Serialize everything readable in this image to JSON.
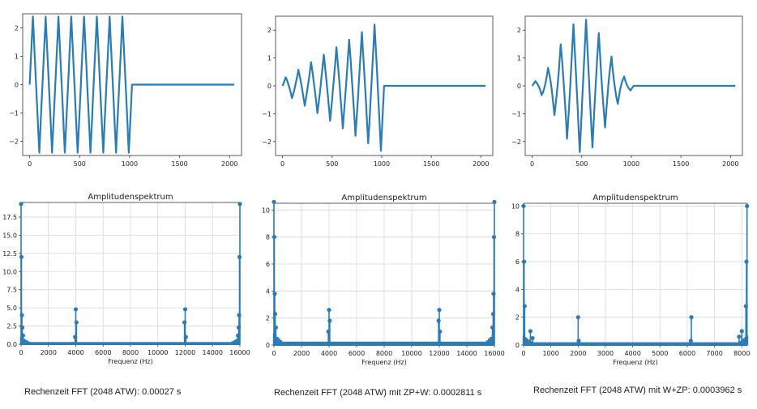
{
  "colors": {
    "series": "#2b7bb6",
    "grid": "#d9d9d9",
    "axis": "#333333"
  },
  "captions": [
    "Rechenzeit FFT (2048 ATW): 0.00027 s",
    "Rechenzeit FFT (2048 ATW) mit ZP+W: 0.0002811 s",
    "Rechenzeit FFT (2048 ATW) mit W+ZP: 0.0003962 s"
  ],
  "chart_data": [
    {
      "type": "line",
      "title": "",
      "xlabel": "",
      "ylabel": "",
      "xlim": [
        -70,
        2120
      ],
      "ylim": [
        -2.5,
        2.5
      ],
      "xticks": [
        0,
        500,
        1000,
        1500,
        2000
      ],
      "yticks": [
        2,
        1,
        0,
        -1,
        -2
      ],
      "grid": false,
      "signal": {
        "samples": 2048,
        "active_samples": 1024,
        "period_samples": 128,
        "peak_amplitude": 2.4,
        "envelope": "rectangular"
      }
    },
    {
      "type": "line",
      "title": "",
      "xlabel": "",
      "ylabel": "",
      "xlim": [
        -70,
        2120
      ],
      "ylim": [
        -2.5,
        2.5
      ],
      "xticks": [
        0,
        500,
        1000,
        1500,
        2000
      ],
      "yticks": [
        2,
        1,
        0,
        -1,
        -2
      ],
      "grid": false,
      "signal": {
        "samples": 2048,
        "active_samples": 1024,
        "period_samples": 128,
        "peak_amplitude": 2.4,
        "envelope": "rising"
      }
    },
    {
      "type": "line",
      "title": "",
      "xlabel": "",
      "ylabel": "",
      "xlim": [
        -70,
        2120
      ],
      "ylim": [
        -2.5,
        2.5
      ],
      "xticks": [
        0,
        500,
        1000,
        1500,
        2000
      ],
      "yticks": [
        2,
        1,
        0,
        -1,
        -2
      ],
      "grid": false,
      "signal": {
        "samples": 2048,
        "active_samples": 1024,
        "period_samples": 128,
        "peak_amplitude": 2.4,
        "envelope": "hann"
      }
    },
    {
      "type": "stem",
      "title": "Amplitudenspektrum",
      "xlabel": "Frequenz (Hz)",
      "ylabel": "",
      "xlim": [
        0,
        16000
      ],
      "ylim": [
        0,
        19.5
      ],
      "xticks": [
        0,
        2000,
        4000,
        6000,
        8000,
        10000,
        12000,
        14000,
        16000
      ],
      "yticks": [
        0.0,
        2.5,
        5.0,
        7.5,
        10.0,
        12.5,
        15.0,
        17.5
      ],
      "ytick_labels": [
        "0.0",
        "2.5",
        "5.0",
        "7.5",
        "10.0",
        "12.5",
        "15.0",
        "17.5"
      ],
      "grid": true,
      "peaks": [
        {
          "x": 0,
          "y": 19.3
        },
        {
          "x": 30,
          "y": 12
        },
        {
          "x": 60,
          "y": 4
        },
        {
          "x": 90,
          "y": 2.3
        },
        {
          "x": 140,
          "y": 1.2
        },
        {
          "x": 3950,
          "y": 1.0
        },
        {
          "x": 4000,
          "y": 4.8
        },
        {
          "x": 4050,
          "y": 3.0
        },
        {
          "x": 11950,
          "y": 3.0
        },
        {
          "x": 12000,
          "y": 4.8
        },
        {
          "x": 12050,
          "y": 1.0
        },
        {
          "x": 15860,
          "y": 1.2
        },
        {
          "x": 15910,
          "y": 2.3
        },
        {
          "x": 15940,
          "y": 4
        },
        {
          "x": 15970,
          "y": 12
        },
        {
          "x": 16000,
          "y": 19.3
        }
      ],
      "floor": 0.3
    },
    {
      "type": "stem",
      "title": "Amplitudenspektrum",
      "xlabel": "Frequenz (Hz)",
      "ylabel": "",
      "xlim": [
        0,
        16000
      ],
      "ylim": [
        0,
        10.5
      ],
      "xticks": [
        0,
        2000,
        4000,
        6000,
        8000,
        10000,
        12000,
        14000,
        16000
      ],
      "yticks": [
        0,
        2,
        4,
        6,
        8,
        10
      ],
      "grid": true,
      "peaks": [
        {
          "x": 0,
          "y": 10.6
        },
        {
          "x": 30,
          "y": 8.0
        },
        {
          "x": 60,
          "y": 3.8
        },
        {
          "x": 90,
          "y": 2.3
        },
        {
          "x": 140,
          "y": 1.3
        },
        {
          "x": 3950,
          "y": 1.0
        },
        {
          "x": 4000,
          "y": 2.6
        },
        {
          "x": 4050,
          "y": 1.8
        },
        {
          "x": 11950,
          "y": 1.8
        },
        {
          "x": 12000,
          "y": 2.6
        },
        {
          "x": 12050,
          "y": 1.0
        },
        {
          "x": 15860,
          "y": 1.3
        },
        {
          "x": 15910,
          "y": 2.3
        },
        {
          "x": 15940,
          "y": 3.8
        },
        {
          "x": 15970,
          "y": 8.0
        },
        {
          "x": 16000,
          "y": 10.6
        }
      ],
      "floor": 0.25
    },
    {
      "type": "stem",
      "title": "Amplitudenspektrum",
      "xlabel": "Frequenz (Hz)",
      "ylabel": "",
      "xlim": [
        0,
        8200
      ],
      "ylim": [
        0,
        10.2
      ],
      "xticks": [
        0,
        1000,
        2000,
        3000,
        4000,
        5000,
        6000,
        7000,
        8000
      ],
      "yticks": [
        0,
        2,
        4,
        6,
        8,
        10
      ],
      "grid": true,
      "peaks": [
        {
          "x": 0,
          "y": 10.0
        },
        {
          "x": 20,
          "y": 6.0
        },
        {
          "x": 40,
          "y": 2.8
        },
        {
          "x": 250,
          "y": 1.0
        },
        {
          "x": 330,
          "y": 0.5
        },
        {
          "x": 2000,
          "y": 2.0
        },
        {
          "x": 2020,
          "y": 0.3
        },
        {
          "x": 6150,
          "y": 2.0
        },
        {
          "x": 6130,
          "y": 0.3
        },
        {
          "x": 7900,
          "y": 0.6
        },
        {
          "x": 8000,
          "y": 1.0
        },
        {
          "x": 8150,
          "y": 2.8
        },
        {
          "x": 8170,
          "y": 6.0
        },
        {
          "x": 8190,
          "y": 10.0
        }
      ],
      "floor": 0.2
    }
  ]
}
